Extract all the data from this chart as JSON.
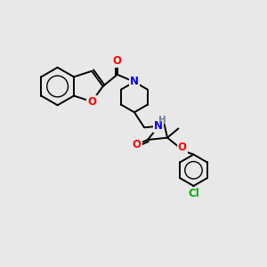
{
  "bg_color": "#e8e8e8",
  "bond_color": "#000000",
  "atom_colors": {
    "O": "#ff0000",
    "N": "#0000ff",
    "Cl": "#00aa00",
    "H": "#708090"
  },
  "figsize": [
    3.0,
    3.0
  ],
  "dpi": 100,
  "lw": 1.4,
  "fs": 8.5
}
